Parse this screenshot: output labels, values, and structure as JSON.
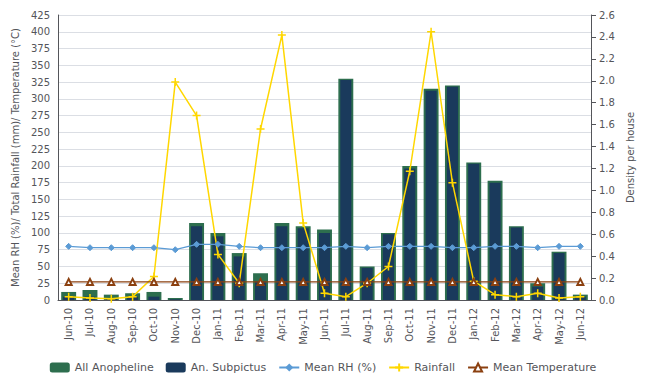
{
  "chart_data": {
    "type": "bar",
    "ylabel": "Mean RH (%)/ Total Rainfall (mm)/ Temperature (°C)",
    "y2label": "Density per house",
    "categories": [
      "Jun-10",
      "Jul-10",
      "Aug-10",
      "Sep-10",
      "Oct-10",
      "Nov-10",
      "Dec-10",
      "Jan-11",
      "Feb-11",
      "Mar-11",
      "Apr-11",
      "May-11",
      "Jun-11",
      "Jul-11",
      "Aug-11",
      "Sep-11",
      "Oct-11",
      "Nov-11",
      "Dec-11",
      "Jan-12",
      "Feb-12",
      "Mar-12",
      "Apr-12",
      "May-12",
      "Jun-12"
    ],
    "series": [
      {
        "name": "All Anopheline",
        "type": "bar",
        "color": "#2d6e4e",
        "values": [
          12,
          15,
          8,
          10,
          12,
          3,
          115,
          100,
          70,
          40,
          115,
          110,
          105,
          330,
          50,
          100,
          200,
          315,
          320,
          205,
          178,
          110,
          25,
          72,
          8
        ]
      },
      {
        "name": "An. Subpictus",
        "type": "bar",
        "color": "#1a3a5c",
        "values": [
          5,
          5,
          2,
          5,
          5,
          1,
          110,
          95,
          65,
          28,
          110,
          107,
          100,
          328,
          48,
          98,
          196,
          312,
          318,
          203,
          175,
          108,
          20,
          70,
          5
        ]
      },
      {
        "name": "Mean RH (%)",
        "type": "line",
        "color": "#5b9bd5",
        "marker": "diamond",
        "values": [
          80,
          78,
          78,
          78,
          78,
          75,
          83,
          83,
          80,
          78,
          78,
          78,
          78,
          80,
          78,
          80,
          80,
          80,
          78,
          78,
          80,
          80,
          78,
          80,
          80
        ]
      },
      {
        "name": "Rainfall",
        "type": "line",
        "color": "#ffd700",
        "marker": "plus",
        "values": [
          5,
          3,
          2,
          5,
          35,
          325,
          275,
          68,
          25,
          255,
          395,
          115,
          10,
          5,
          25,
          50,
          192,
          400,
          175,
          28,
          8,
          5,
          10,
          3,
          5
        ]
      },
      {
        "name": "Mean Temperature",
        "type": "line",
        "color": "#8b4010",
        "marker": "triangle",
        "values": [
          27,
          27,
          27,
          27,
          27,
          27,
          27,
          27,
          27,
          27,
          27,
          27,
          27,
          27,
          27,
          27,
          27,
          27,
          27,
          27,
          27,
          27,
          27,
          27,
          27
        ]
      }
    ],
    "ylim": [
      0,
      425
    ],
    "yticks": [
      0,
      25,
      50,
      75,
      100,
      125,
      150,
      175,
      200,
      225,
      250,
      275,
      300,
      325,
      350,
      375,
      400,
      425
    ],
    "y2lim": [
      0,
      2.6
    ],
    "y2ticks": [
      {
        "value": 0,
        "label": "0.0"
      },
      0.2,
      0.4,
      0.6,
      0.8,
      {
        "value": 1,
        "label": "1.0"
      },
      1.2,
      1.4,
      1.6,
      1.8,
      {
        "value": 2,
        "label": "2.0"
      },
      2.2,
      2.4,
      2.6
    ],
    "grid": true,
    "legend": "bottom"
  }
}
